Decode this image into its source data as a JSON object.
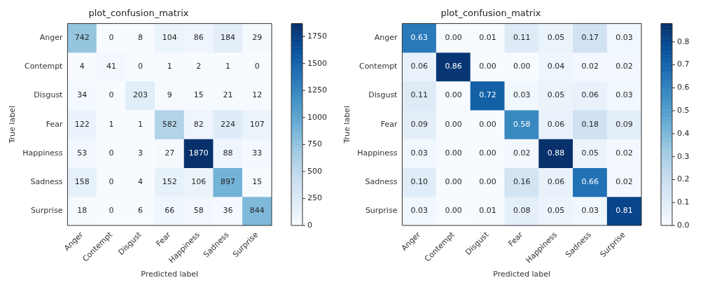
{
  "chart_data": [
    {
      "type": "heatmap",
      "title": "plot_confusion_matrix",
      "xlabel": "Predicted label",
      "ylabel": "True label",
      "categories": [
        "Anger",
        "Contempt",
        "Disgust",
        "Fear",
        "Happiness",
        "Sadness",
        "Surprise"
      ],
      "y_categories": [
        "Anger",
        "Contempt",
        "Disgust",
        "Fear",
        "Happiness",
        "Sadness",
        "Surprise"
      ],
      "cells": [
        [
          742,
          0,
          8,
          104,
          86,
          184,
          29
        ],
        [
          4,
          41,
          0,
          1,
          2,
          1,
          0
        ],
        [
          34,
          0,
          203,
          9,
          15,
          21,
          12
        ],
        [
          122,
          1,
          1,
          582,
          82,
          224,
          107
        ],
        [
          53,
          0,
          3,
          27,
          1870,
          88,
          33
        ],
        [
          158,
          0,
          4,
          152,
          106,
          897,
          15
        ],
        [
          18,
          0,
          6,
          66,
          58,
          36,
          844
        ]
      ],
      "data_labels": true,
      "clim": [
        0,
        1870
      ],
      "cticks": [
        0,
        250,
        500,
        750,
        1000,
        1250,
        1500,
        1750
      ]
    },
    {
      "type": "heatmap",
      "title": "plot_confusion_matrix",
      "xlabel": "Predicted label",
      "ylabel": "True label",
      "categories": [
        "Anger",
        "Contempt",
        "Disgust",
        "Fear",
        "Happiness",
        "Sadness",
        "Surprise"
      ],
      "y_categories": [
        "Anger",
        "Contempt",
        "Disgust",
        "Fear",
        "Happiness",
        "Sadness",
        "Surprise"
      ],
      "cells": [
        [
          0.63,
          0,
          0.01,
          0.11,
          0.05,
          0.17,
          0.03
        ],
        [
          0.06,
          0.86,
          0,
          0,
          0.04,
          0.02,
          0.02
        ],
        [
          0.11,
          0,
          0.72,
          0.03,
          0.05,
          0.06,
          0.03
        ],
        [
          0.09,
          0,
          0,
          0.58,
          0.06,
          0.18,
          0.09
        ],
        [
          0.03,
          0,
          0,
          0.02,
          0.88,
          0.05,
          0.02
        ],
        [
          0.1,
          0,
          0,
          0.16,
          0.06,
          0.66,
          0.02
        ],
        [
          0.03,
          0,
          0.01,
          0.08,
          0.05,
          0.03,
          0.81
        ]
      ],
      "cell_labels": [
        [
          "0.63",
          "0.00",
          "0.01",
          "0.11",
          "0.05",
          "0.17",
          "0.03"
        ],
        [
          "0.06",
          "0.86",
          "0.00",
          "0.00",
          "0.04",
          "0.02",
          "0.02"
        ],
        [
          "0.11",
          "0.00",
          "0.72",
          "0.03",
          "0.05",
          "0.06",
          "0.03"
        ],
        [
          "0.09",
          "0.00",
          "0.00",
          "0.58",
          "0.06",
          "0.18",
          "0.09"
        ],
        [
          "0.03",
          "0.00",
          "0.00",
          "0.02",
          "0.88",
          "0.05",
          "0.02"
        ],
        [
          "0.10",
          "0.00",
          "0.00",
          "0.16",
          "0.06",
          "0.66",
          "0.02"
        ],
        [
          "0.03",
          "0.00",
          "0.01",
          "0.08",
          "0.05",
          "0.03",
          "0.81"
        ]
      ],
      "clim": [
        0,
        0.88
      ],
      "cticks": [
        {
          "value": 0,
          "label": "0.0"
        },
        {
          "value": 0.1,
          "label": "0.1"
        },
        {
          "value": 0.2,
          "label": "0.2"
        },
        {
          "value": 0.3,
          "label": "0.3"
        },
        {
          "value": 0.4,
          "label": "0.4"
        },
        {
          "value": 0.5,
          "label": "0.5"
        },
        {
          "value": 0.6,
          "label": "0.6"
        },
        {
          "value": 0.7,
          "label": "0.7"
        },
        {
          "value": 0.8,
          "label": "0.8"
        }
      ]
    }
  ]
}
